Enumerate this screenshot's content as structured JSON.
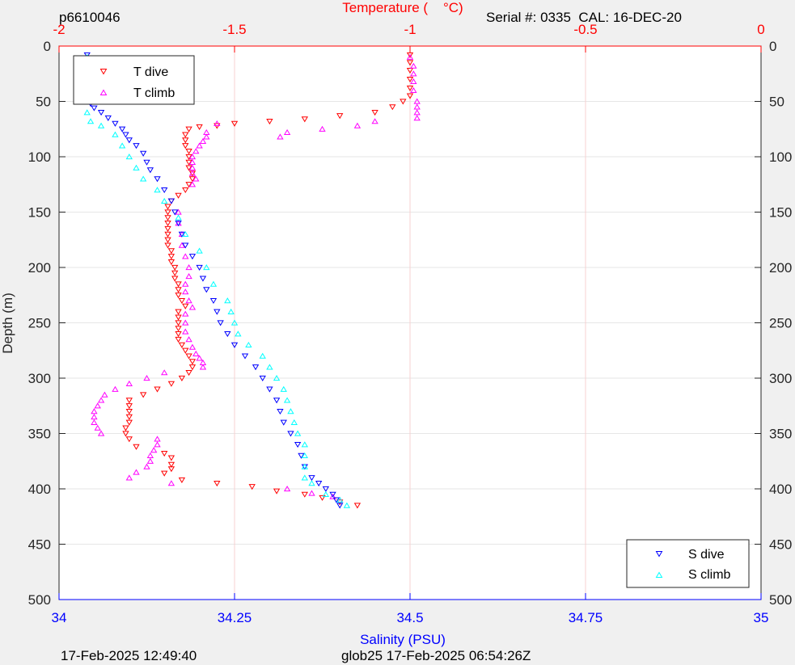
{
  "header": {
    "profile_id": "p6610046",
    "serial_cal": "Serial #: 0335  CAL: 16-DEC-20"
  },
  "footer": {
    "generated": "17-Feb-2025 12:49:40",
    "mission": "glob25 17-Feb-2025 06:54:26Z"
  },
  "colors": {
    "t_dive": "#ff0000",
    "t_climb": "#ff00ff",
    "s_dive": "#0000ff",
    "s_climb": "#00ffff",
    "temperature_axis": "#ff0000",
    "salinity_axis": "#0000ff",
    "depth_axis": "#262626",
    "grid": "#e6e6e6",
    "background": "#f0f0f0",
    "plot_background": "#ffffff"
  },
  "chart_data": {
    "type": "scatter",
    "depth_axis": {
      "label": "Depth (m)",
      "range": [
        0,
        500
      ],
      "reversed": true,
      "ticks": [
        "0",
        "50",
        "100",
        "150",
        "200",
        "250",
        "300",
        "350",
        "400",
        "450",
        "500"
      ],
      "tick_values": [
        0,
        50,
        100,
        150,
        200,
        250,
        300,
        350,
        400,
        450,
        500
      ]
    },
    "temperature_axis": {
      "label": "Temperature (    °C)",
      "position": "top",
      "range": [
        -2,
        0
      ],
      "ticks": [
        "-2",
        "-1.5",
        "-1",
        "-0.5",
        "0"
      ],
      "tick_values": [
        -2,
        -1.5,
        -1,
        -0.5,
        0
      ]
    },
    "salinity_axis": {
      "label": "Salinity (PSU)",
      "position": "bottom",
      "range": [
        34,
        35
      ],
      "ticks": [
        "34",
        "34.25",
        "34.5",
        "34.75",
        "35"
      ],
      "tick_values": [
        34,
        34.25,
        34.5,
        34.75,
        35
      ]
    },
    "grid": true,
    "legends": [
      {
        "placement": "top-left",
        "entries": [
          "T dive",
          "T climb"
        ]
      },
      {
        "placement": "bottom-right",
        "entries": [
          "S dive",
          "S climb"
        ]
      }
    ],
    "series": [
      {
        "name": "T dive",
        "axis": "temperature",
        "marker": "triangle-down",
        "points": [
          [
            -1.0,
            8
          ],
          [
            -1.0,
            15
          ],
          [
            -1.0,
            22
          ],
          [
            -1.0,
            30
          ],
          [
            -1.0,
            38
          ],
          [
            -1.0,
            45
          ],
          [
            -1.02,
            50
          ],
          [
            -1.05,
            55
          ],
          [
            -1.1,
            60
          ],
          [
            -1.2,
            63
          ],
          [
            -1.3,
            66
          ],
          [
            -1.4,
            68
          ],
          [
            -1.5,
            70
          ],
          [
            -1.55,
            72
          ],
          [
            -1.6,
            73
          ],
          [
            -1.63,
            75
          ],
          [
            -1.64,
            80
          ],
          [
            -1.64,
            85
          ],
          [
            -1.64,
            90
          ],
          [
            -1.63,
            95
          ],
          [
            -1.63,
            100
          ],
          [
            -1.63,
            105
          ],
          [
            -1.63,
            110
          ],
          [
            -1.62,
            115
          ],
          [
            -1.62,
            120
          ],
          [
            -1.63,
            125
          ],
          [
            -1.64,
            130
          ],
          [
            -1.66,
            135
          ],
          [
            -1.68,
            140
          ],
          [
            -1.69,
            145
          ],
          [
            -1.69,
            150
          ],
          [
            -1.69,
            155
          ],
          [
            -1.69,
            160
          ],
          [
            -1.69,
            165
          ],
          [
            -1.69,
            170
          ],
          [
            -1.69,
            175
          ],
          [
            -1.69,
            180
          ],
          [
            -1.68,
            185
          ],
          [
            -1.68,
            190
          ],
          [
            -1.68,
            195
          ],
          [
            -1.67,
            200
          ],
          [
            -1.67,
            205
          ],
          [
            -1.67,
            210
          ],
          [
            -1.66,
            215
          ],
          [
            -1.66,
            220
          ],
          [
            -1.66,
            225
          ],
          [
            -1.65,
            230
          ],
          [
            -1.64,
            235
          ],
          [
            -1.66,
            240
          ],
          [
            -1.66,
            245
          ],
          [
            -1.66,
            250
          ],
          [
            -1.66,
            255
          ],
          [
            -1.66,
            260
          ],
          [
            -1.66,
            265
          ],
          [
            -1.65,
            270
          ],
          [
            -1.64,
            275
          ],
          [
            -1.63,
            280
          ],
          [
            -1.62,
            285
          ],
          [
            -1.62,
            290
          ],
          [
            -1.63,
            295
          ],
          [
            -1.65,
            300
          ],
          [
            -1.68,
            305
          ],
          [
            -1.72,
            310
          ],
          [
            -1.76,
            315
          ],
          [
            -1.8,
            320
          ],
          [
            -1.8,
            325
          ],
          [
            -1.8,
            330
          ],
          [
            -1.8,
            335
          ],
          [
            -1.8,
            340
          ],
          [
            -1.81,
            345
          ],
          [
            -1.81,
            350
          ],
          [
            -1.8,
            355
          ],
          [
            -1.78,
            362
          ],
          [
            -1.7,
            368
          ],
          [
            -1.68,
            372
          ],
          [
            -1.68,
            378
          ],
          [
            -1.68,
            382
          ],
          [
            -1.7,
            386
          ],
          [
            -1.65,
            392
          ],
          [
            -1.55,
            395
          ],
          [
            -1.45,
            398
          ],
          [
            -1.38,
            402
          ],
          [
            -1.3,
            405
          ],
          [
            -1.25,
            408
          ],
          [
            -1.2,
            412
          ],
          [
            -1.15,
            415
          ]
        ]
      },
      {
        "name": "T climb",
        "axis": "temperature",
        "marker": "triangle-up",
        "points": [
          [
            -1.0,
            10
          ],
          [
            -0.99,
            18
          ],
          [
            -0.99,
            25
          ],
          [
            -0.99,
            32
          ],
          [
            -0.99,
            40
          ],
          [
            -0.98,
            50
          ],
          [
            -0.98,
            55
          ],
          [
            -0.98,
            60
          ],
          [
            -0.98,
            65
          ],
          [
            -1.1,
            68
          ],
          [
            -1.15,
            72
          ],
          [
            -1.25,
            75
          ],
          [
            -1.35,
            78
          ],
          [
            -1.37,
            82
          ],
          [
            -1.55,
            70
          ],
          [
            -1.58,
            78
          ],
          [
            -1.58,
            82
          ],
          [
            -1.59,
            86
          ],
          [
            -1.6,
            90
          ],
          [
            -1.61,
            95
          ],
          [
            -1.62,
            100
          ],
          [
            -1.62,
            105
          ],
          [
            -1.62,
            110
          ],
          [
            -1.62,
            115
          ],
          [
            -1.61,
            120
          ],
          [
            -1.62,
            125
          ],
          [
            -1.66,
            150
          ],
          [
            -1.66,
            160
          ],
          [
            -1.65,
            170
          ],
          [
            -1.65,
            180
          ],
          [
            -1.64,
            190
          ],
          [
            -1.63,
            200
          ],
          [
            -1.63,
            208
          ],
          [
            -1.64,
            215
          ],
          [
            -1.64,
            222
          ],
          [
            -1.63,
            230
          ],
          [
            -1.62,
            236
          ],
          [
            -1.64,
            242
          ],
          [
            -1.64,
            250
          ],
          [
            -1.64,
            258
          ],
          [
            -1.63,
            265
          ],
          [
            -1.62,
            272
          ],
          [
            -1.61,
            278
          ],
          [
            -1.6,
            282
          ],
          [
            -1.59,
            286
          ],
          [
            -1.59,
            290
          ],
          [
            -1.7,
            295
          ],
          [
            -1.75,
            300
          ],
          [
            -1.8,
            305
          ],
          [
            -1.84,
            310
          ],
          [
            -1.87,
            315
          ],
          [
            -1.88,
            320
          ],
          [
            -1.89,
            325
          ],
          [
            -1.9,
            330
          ],
          [
            -1.9,
            335
          ],
          [
            -1.9,
            340
          ],
          [
            -1.89,
            345
          ],
          [
            -1.88,
            350
          ],
          [
            -1.72,
            355
          ],
          [
            -1.72,
            360
          ],
          [
            -1.73,
            365
          ],
          [
            -1.74,
            370
          ],
          [
            -1.74,
            375
          ],
          [
            -1.75,
            380
          ],
          [
            -1.78,
            385
          ],
          [
            -1.8,
            390
          ],
          [
            -1.68,
            395
          ],
          [
            -1.35,
            400
          ],
          [
            -1.28,
            404
          ],
          [
            -1.22,
            407
          ],
          [
            -1.2,
            410
          ]
        ]
      },
      {
        "name": "S dive",
        "axis": "salinity",
        "marker": "triangle-down",
        "points": [
          [
            34.04,
            8
          ],
          [
            34.04,
            15
          ],
          [
            34.04,
            22
          ],
          [
            34.04,
            30
          ],
          [
            34.04,
            38
          ],
          [
            34.04,
            45
          ],
          [
            34.045,
            52
          ],
          [
            34.05,
            56
          ],
          [
            34.06,
            60
          ],
          [
            34.07,
            65
          ],
          [
            34.08,
            70
          ],
          [
            34.09,
            75
          ],
          [
            34.095,
            80
          ],
          [
            34.1,
            85
          ],
          [
            34.11,
            90
          ],
          [
            34.12,
            97
          ],
          [
            34.125,
            105
          ],
          [
            34.13,
            112
          ],
          [
            34.14,
            120
          ],
          [
            34.15,
            130
          ],
          [
            34.16,
            140
          ],
          [
            34.165,
            150
          ],
          [
            34.17,
            160
          ],
          [
            34.175,
            170
          ],
          [
            34.18,
            180
          ],
          [
            34.19,
            190
          ],
          [
            34.2,
            200
          ],
          [
            34.205,
            210
          ],
          [
            34.21,
            220
          ],
          [
            34.22,
            230
          ],
          [
            34.225,
            240
          ],
          [
            34.23,
            250
          ],
          [
            34.24,
            260
          ],
          [
            34.25,
            270
          ],
          [
            34.265,
            280
          ],
          [
            34.28,
            290
          ],
          [
            34.29,
            300
          ],
          [
            34.3,
            310
          ],
          [
            34.31,
            320
          ],
          [
            34.315,
            330
          ],
          [
            34.32,
            340
          ],
          [
            34.33,
            350
          ],
          [
            34.34,
            360
          ],
          [
            34.345,
            370
          ],
          [
            34.35,
            380
          ],
          [
            34.36,
            390
          ],
          [
            34.37,
            395
          ],
          [
            34.38,
            400
          ],
          [
            34.39,
            405
          ],
          [
            34.395,
            410
          ],
          [
            34.4,
            415
          ]
        ]
      },
      {
        "name": "S climb",
        "axis": "salinity",
        "marker": "triangle-up",
        "points": [
          [
            34.04,
            10
          ],
          [
            34.04,
            20
          ],
          [
            34.04,
            30
          ],
          [
            34.04,
            40
          ],
          [
            34.04,
            50
          ],
          [
            34.04,
            60
          ],
          [
            34.045,
            68
          ],
          [
            34.06,
            72
          ],
          [
            34.08,
            80
          ],
          [
            34.09,
            90
          ],
          [
            34.1,
            100
          ],
          [
            34.11,
            110
          ],
          [
            34.12,
            120
          ],
          [
            34.14,
            130
          ],
          [
            34.15,
            140
          ],
          [
            34.17,
            155
          ],
          [
            34.18,
            170
          ],
          [
            34.2,
            185
          ],
          [
            34.21,
            200
          ],
          [
            34.22,
            215
          ],
          [
            34.24,
            230
          ],
          [
            34.245,
            240
          ],
          [
            34.25,
            250
          ],
          [
            34.255,
            260
          ],
          [
            34.27,
            270
          ],
          [
            34.29,
            280
          ],
          [
            34.3,
            290
          ],
          [
            34.31,
            300
          ],
          [
            34.32,
            310
          ],
          [
            34.325,
            320
          ],
          [
            34.33,
            330
          ],
          [
            34.335,
            340
          ],
          [
            34.34,
            350
          ],
          [
            34.35,
            360
          ],
          [
            34.35,
            370
          ],
          [
            34.35,
            380
          ],
          [
            34.35,
            390
          ],
          [
            34.36,
            395
          ],
          [
            34.38,
            405
          ],
          [
            34.4,
            410
          ],
          [
            34.41,
            415
          ]
        ]
      }
    ]
  }
}
